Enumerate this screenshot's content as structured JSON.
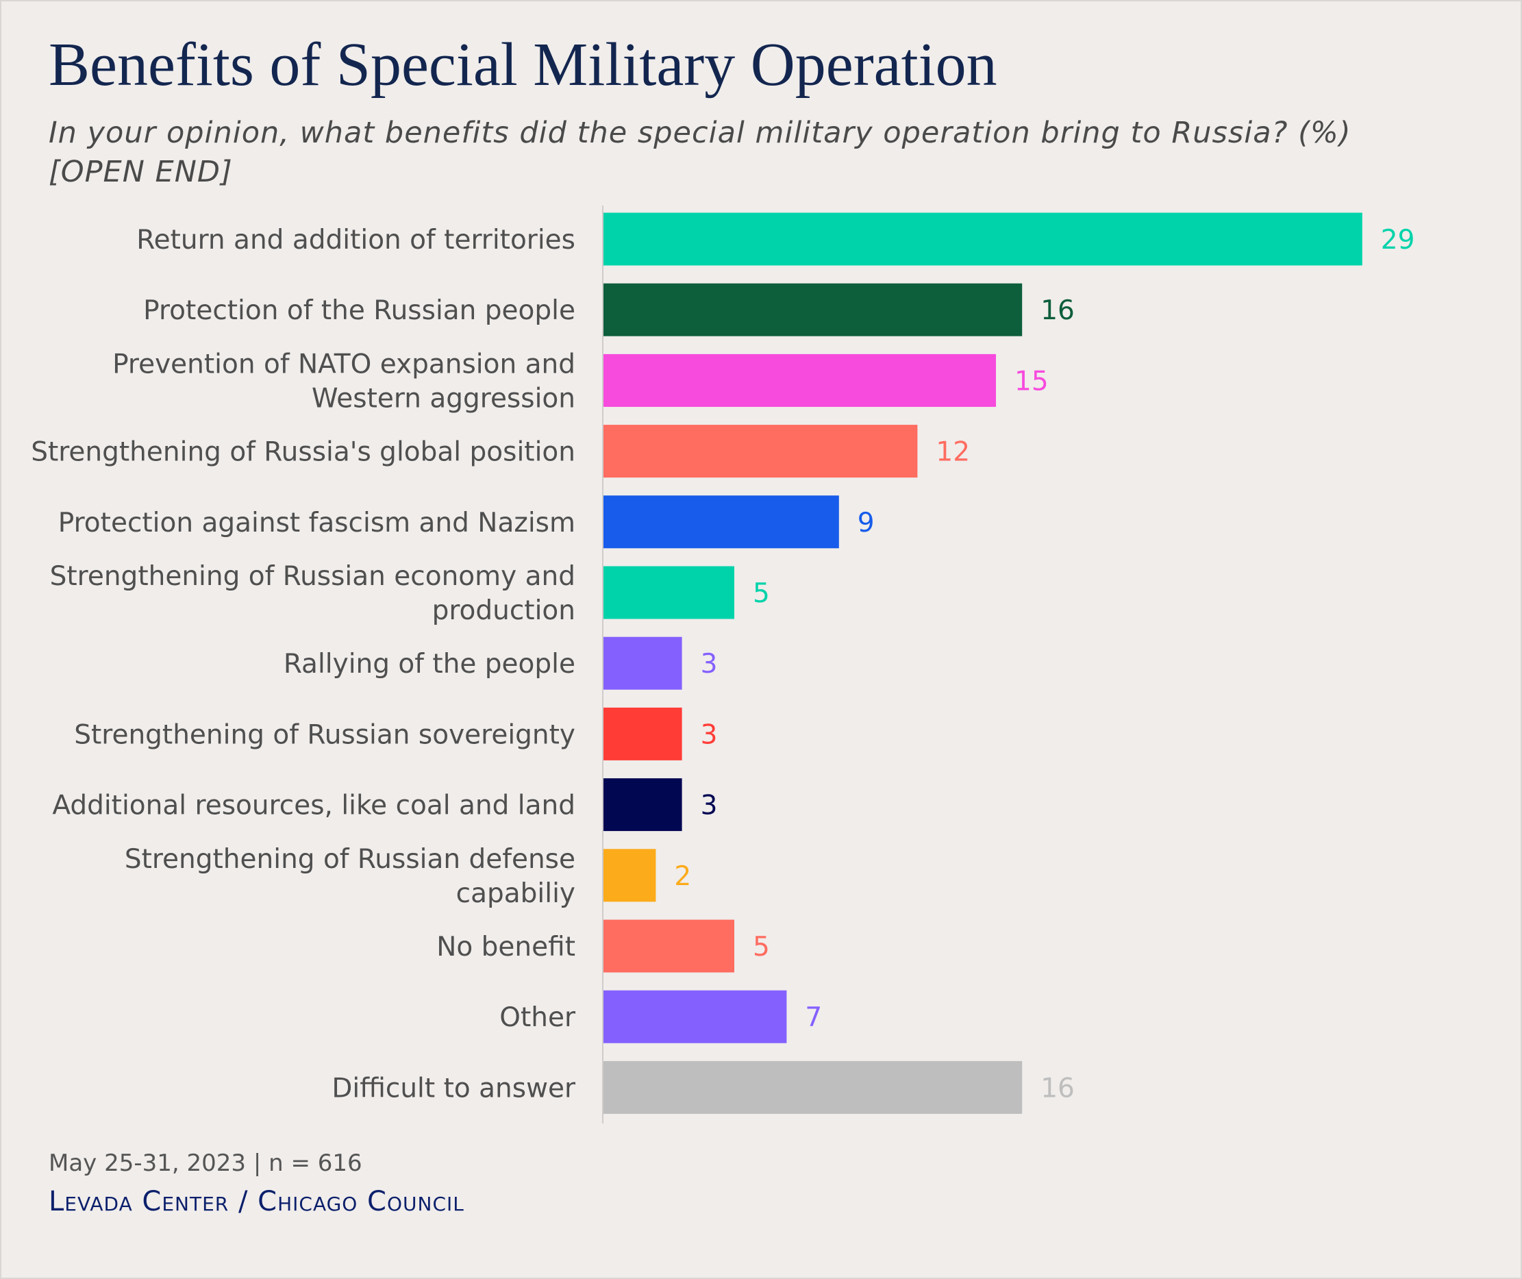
{
  "title": "Benefits of Special Military Operation",
  "subtitle": "In your opinion, what benefits did the special military operation bring to Russia? (%) [OPEN END]",
  "source": {
    "date_sample": "May 25-31, 2023 | n = 616",
    "organization": "Levada Center / Chicago Council"
  },
  "chart_data": {
    "type": "bar",
    "orientation": "horizontal",
    "title": "Benefits of Special Military Operation",
    "subtitle": "In your opinion, what benefits did the special military operation bring to Russia? (%) [OPEN END]",
    "xlabel": "",
    "ylabel": "",
    "xlim": [
      0,
      30
    ],
    "grid": false,
    "legend": "none",
    "data_labels": true,
    "bars": [
      {
        "label": "Return and addition of territories",
        "value": 29,
        "color": "#00d3aa"
      },
      {
        "label": "Protection of the Russian people",
        "value": 16,
        "color": "#0d5e3b"
      },
      {
        "label": "Prevention of NATO expansion and Western aggression",
        "value": 15,
        "color": "#f74bdd"
      },
      {
        "label": "Strengthening of Russia's global position",
        "value": 12,
        "color": "#ff6c60"
      },
      {
        "label": "Protection against fascism and Nazism",
        "value": 9,
        "color": "#175cea"
      },
      {
        "label": "Strengthening of Russian economy and production",
        "value": 5,
        "color": "#00d3aa"
      },
      {
        "label": "Rallying of the people",
        "value": 3,
        "color": "#8460ff"
      },
      {
        "label": "Strengthening of Russian sovereignty",
        "value": 3,
        "color": "#ff3c36"
      },
      {
        "label": "Additional resources, like coal and land",
        "value": 3,
        "color": "#020752"
      },
      {
        "label": "Strengthening of Russian defense capabiliy",
        "value": 2,
        "color": "#fcab1a"
      },
      {
        "label": "No benefit",
        "value": 5,
        "color": "#ff6c60"
      },
      {
        "label": "Other",
        "value": 7,
        "color": "#8460ff"
      },
      {
        "label": "Difficult to answer",
        "value": 16,
        "color": "#bebebe"
      }
    ]
  }
}
